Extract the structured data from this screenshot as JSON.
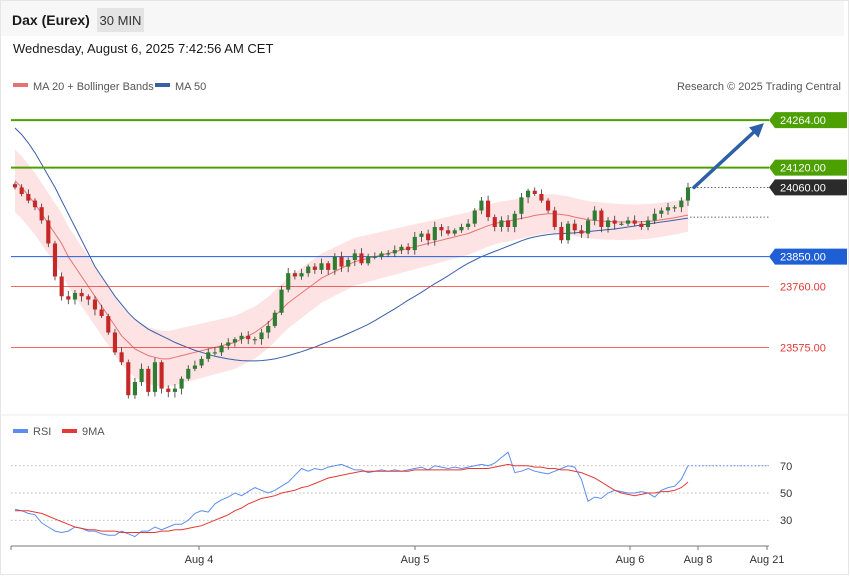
{
  "header": {
    "symbol": "Dax (Eurex)",
    "timeframe": "30 MIN",
    "datetime": "Wednesday, August 6, 2025 7:42:56 AM CET"
  },
  "legend": {
    "ma20": "MA 20 + Bollinger Bands",
    "ma50": "MA 50",
    "credit": "Research © 2025 Trading Central",
    "rsi": "RSI",
    "rsi_ma": "9MA"
  },
  "colors": {
    "up": "#2e7d32",
    "down": "#c62828",
    "ma20": "#e57373",
    "ma50": "#3a5fa8",
    "bollinger_fill": "#fde3e3",
    "resistance": "#4ca000",
    "support": "#1f5fd6",
    "support_minor": "#e53935",
    "rsi": "#5b8def",
    "rsi_ma": "#e53935",
    "current_tag": "#2b2b2b",
    "arrow": "#2f5fa8"
  },
  "chart_data": [
    {
      "type": "candlestick",
      "title": "",
      "ylim": [
        23370,
        24325
      ],
      "x_labels": [
        "Aug 4",
        "Aug 5",
        "Aug 6",
        "Aug 8",
        "Aug 21"
      ],
      "levels": [
        {
          "value": 24264.0,
          "label": "24264.00",
          "kind": "resistance"
        },
        {
          "value": 24120.0,
          "label": "24120.00",
          "kind": "resistance"
        },
        {
          "value": 24060.0,
          "label": "24060.00",
          "kind": "current"
        },
        {
          "value": 23850.0,
          "label": "23850.00",
          "kind": "support"
        },
        {
          "value": 23760.0,
          "label": "23760.00",
          "kind": "support_minor"
        },
        {
          "value": 23575.0,
          "label": "23575.00",
          "kind": "support_minor"
        }
      ],
      "pivot_dotted": 23970,
      "target_arrow": {
        "from": 24060,
        "to": 24264
      },
      "close": [
        24060,
        24040,
        24020,
        24000,
        23960,
        23890,
        23790,
        23730,
        23720,
        23740,
        23730,
        23720,
        23690,
        23670,
        23620,
        23560,
        23530,
        23430,
        23470,
        23510,
        23440,
        23530,
        23450,
        23440,
        23450,
        23480,
        23510,
        23520,
        23540,
        23560,
        23560,
        23580,
        23590,
        23600,
        23610,
        23600,
        23600,
        23620,
        23640,
        23680,
        23750,
        23800,
        23790,
        23800,
        23820,
        23810,
        23830,
        23810,
        23850,
        23820,
        23840,
        23860,
        23830,
        23850,
        23850,
        23860,
        23860,
        23870,
        23880,
        23870,
        23910,
        23920,
        23900,
        23940,
        23930,
        23920,
        23930,
        23940,
        23950,
        23990,
        24020,
        23970,
        23940,
        23960,
        23940,
        23980,
        24030,
        24050,
        24040,
        24020,
        23990,
        23940,
        23900,
        23950,
        23930,
        23920,
        23960,
        23990,
        23940,
        23960,
        23950,
        23950,
        23960,
        23950,
        23940,
        23960,
        23980,
        23990,
        24000,
        24000,
        24020,
        24060
      ],
      "ma20": [
        24080,
        24060,
        24035,
        24010,
        23980,
        23950,
        23920,
        23890,
        23850,
        23820,
        23790,
        23760,
        23730,
        23700,
        23670,
        23640,
        23610,
        23590,
        23570,
        23560,
        23550,
        23545,
        23540,
        23540,
        23545,
        23550,
        23555,
        23560,
        23565,
        23570,
        23575,
        23580,
        23585,
        23590,
        23600,
        23610,
        23620,
        23635,
        23650,
        23670,
        23690,
        23710,
        23725,
        23740,
        23755,
        23770,
        23785,
        23795,
        23805,
        23815,
        23825,
        23835,
        23840,
        23845,
        23850,
        23855,
        23860,
        23865,
        23870,
        23875,
        23880,
        23885,
        23890,
        23895,
        23900,
        23905,
        23910,
        23915,
        23920,
        23928,
        23936,
        23944,
        23950,
        23955,
        23958,
        23962,
        23966,
        23970,
        23975,
        23978,
        23980,
        23980,
        23978,
        23975,
        23970,
        23966,
        23962,
        23960,
        23958,
        23957,
        23956,
        23955,
        23955,
        23955,
        23956,
        23957,
        23959,
        23962,
        23965,
        23968,
        23972,
        23976
      ],
      "ma50": [
        24240,
        24220,
        24195,
        24165,
        24130,
        24095,
        24060,
        24020,
        23980,
        23940,
        23900,
        23860,
        23820,
        23790,
        23760,
        23730,
        23705,
        23680,
        23660,
        23645,
        23630,
        23620,
        23610,
        23600,
        23590,
        23582,
        23574,
        23566,
        23560,
        23554,
        23548,
        23544,
        23540,
        23537,
        23535,
        23534,
        23534,
        23535,
        23537,
        23540,
        23545,
        23550,
        23556,
        23562,
        23569,
        23576,
        23584,
        23592,
        23600,
        23608,
        23617,
        23626,
        23635,
        23645,
        23656,
        23668,
        23680,
        23692,
        23705,
        23718,
        23730,
        23742,
        23755,
        23768,
        23780,
        23792,
        23805,
        23818,
        23830,
        23840,
        23850,
        23858,
        23866,
        23874,
        23882,
        23890,
        23898,
        23905,
        23910,
        23914,
        23917,
        23919,
        23920,
        23921,
        23922,
        23924,
        23926,
        23928,
        23930,
        23932,
        23934,
        23937,
        23940,
        23943,
        23946,
        23949,
        23952,
        23955,
        23958,
        23961,
        23964,
        23967
      ]
    },
    {
      "type": "line",
      "title": "",
      "ylim": [
        14,
        86
      ],
      "y_ticks": [
        30,
        50,
        70
      ],
      "levels": [
        70,
        50,
        30
      ],
      "series": [
        {
          "name": "RSI",
          "values": [
            38,
            37,
            35,
            34,
            28,
            25,
            22,
            21,
            22,
            25,
            24,
            22,
            22,
            20,
            19,
            19,
            22,
            20,
            18,
            22,
            22,
            25,
            23,
            25,
            27,
            27,
            30,
            35,
            37,
            36,
            42,
            45,
            47,
            50,
            48,
            51,
            54,
            52,
            50,
            52,
            55,
            58,
            63,
            68,
            66,
            68,
            67,
            69,
            70,
            71,
            69,
            67,
            67,
            65,
            66,
            67,
            66,
            67,
            66,
            67,
            68,
            69,
            67,
            70,
            69,
            68,
            69,
            68,
            69,
            70,
            71,
            70,
            72,
            76,
            80,
            65,
            66,
            68,
            66,
            65,
            64,
            66,
            68,
            70,
            69,
            60,
            44,
            47,
            46,
            50,
            52,
            51,
            50,
            50,
            51,
            50,
            47,
            52,
            54,
            55,
            60,
            70
          ]
        },
        {
          "name": "9MA",
          "values": [
            37,
            37,
            37,
            36,
            35,
            33,
            31,
            29,
            27,
            25,
            24,
            23,
            23,
            22,
            22,
            22,
            21,
            21,
            21,
            21,
            21,
            21,
            22,
            22,
            23,
            23,
            24,
            25,
            26,
            28,
            30,
            32,
            34,
            37,
            39,
            42,
            44,
            46,
            47,
            48,
            50,
            51,
            52,
            54,
            55,
            57,
            59,
            61,
            62,
            63,
            64,
            65,
            66,
            66,
            66,
            66,
            66,
            66,
            66,
            66,
            67,
            67,
            67,
            67,
            67,
            67,
            67,
            67,
            68,
            68,
            68,
            68,
            69,
            70,
            71,
            70,
            70,
            70,
            69,
            69,
            68,
            68,
            67,
            67,
            66,
            65,
            63,
            61,
            58,
            55,
            52,
            50,
            49,
            48,
            49,
            50,
            50,
            51,
            51,
            52,
            54,
            58
          ]
        }
      ]
    }
  ]
}
